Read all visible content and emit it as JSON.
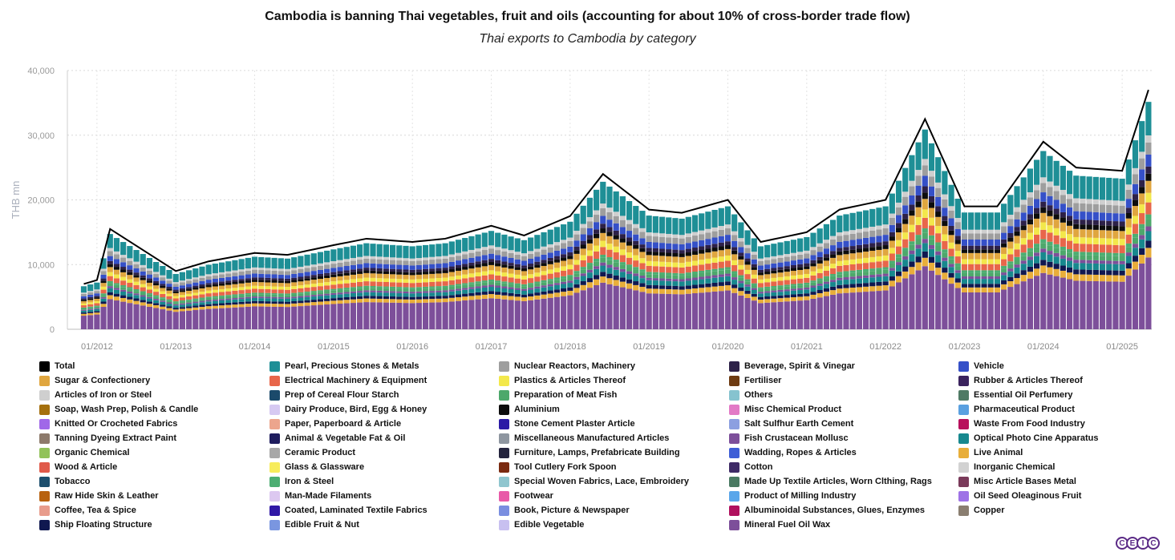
{
  "title": "Cambodia is banning Thai vegetables, fruit and oils (accounting for about 10% of cross-border trade flow)",
  "subtitle": "Thai exports to Cambodia by category",
  "logo_text": "CEIC",
  "chart_data": {
    "type": "bar",
    "stacked": true,
    "ylabel": "THB mn",
    "ylim": [
      0,
      40000
    ],
    "yticks": [
      "0",
      "10,000",
      "20,000",
      "30,000",
      "40,000"
    ],
    "xticks": [
      "01/2012",
      "01/2013",
      "01/2014",
      "01/2015",
      "01/2016",
      "01/2017",
      "01/2018",
      "01/2019",
      "01/2020",
      "01/2021",
      "01/2022",
      "01/2023",
      "01/2024",
      "01/2025"
    ],
    "x_start": "09/2011",
    "x_end": "05/2025",
    "grid": true,
    "legend_position": "bottom",
    "total_series": {
      "name": "Total",
      "color": "#000000",
      "annual_points": [
        [
          "01/2012",
          7600
        ],
        [
          "03/2012",
          15500
        ],
        [
          "01/2013",
          9000
        ],
        [
          "06/2013",
          10500
        ],
        [
          "01/2014",
          11800
        ],
        [
          "06/2014",
          11500
        ],
        [
          "01/2015",
          13000
        ],
        [
          "06/2015",
          14000
        ],
        [
          "01/2016",
          13500
        ],
        [
          "06/2016",
          14000
        ],
        [
          "01/2017",
          16000
        ],
        [
          "06/2017",
          14500
        ],
        [
          "01/2018",
          17500
        ],
        [
          "06/2018",
          24000
        ],
        [
          "01/2019",
          18500
        ],
        [
          "06/2019",
          18000
        ],
        [
          "01/2020",
          20000
        ],
        [
          "06/2020",
          13500
        ],
        [
          "01/2021",
          15000
        ],
        [
          "06/2021",
          18500
        ],
        [
          "01/2022",
          20000
        ],
        [
          "07/2022",
          32500
        ],
        [
          "01/2023",
          19000
        ],
        [
          "06/2023",
          19000
        ],
        [
          "01/2024",
          29000
        ],
        [
          "06/2024",
          25000
        ],
        [
          "01/2025",
          24500
        ],
        [
          "05/2025",
          37000
        ]
      ]
    },
    "series": [
      {
        "name": "Total",
        "color": "#000000"
      },
      {
        "name": "Pearl, Precious Stones & Metals",
        "color": "#1e8f96"
      },
      {
        "name": "Nuclear Reactors, Machinery",
        "color": "#9e9e9e"
      },
      {
        "name": "Beverage, Spirit & Vinegar",
        "color": "#2d2148"
      },
      {
        "name": "Vehicle",
        "color": "#3550c8"
      },
      {
        "name": "Sugar & Confectionery",
        "color": "#e0a63f"
      },
      {
        "name": "Electrical Machinery & Equipment",
        "color": "#e8664a"
      },
      {
        "name": "Plastics & Articles Thereof",
        "color": "#f3e84b"
      },
      {
        "name": "Fertiliser",
        "color": "#6e3b12"
      },
      {
        "name": "Rubber & Articles Thereof",
        "color": "#3b235e"
      },
      {
        "name": "Articles of Iron or Steel",
        "color": "#cfcfcf"
      },
      {
        "name": "Prep of Cereal Flour Starch",
        "color": "#1b4a6b"
      },
      {
        "name": "Preparation of Meat Fish",
        "color": "#4da86b"
      },
      {
        "name": "Others",
        "color": "#86c3cf"
      },
      {
        "name": "Essential Oil Perfumery",
        "color": "#4f7a64"
      },
      {
        "name": "Soap, Wash Prep, Polish & Candle",
        "color": "#a5700e"
      },
      {
        "name": "Dairy Produce, Bird, Egg & Honey",
        "color": "#d6c9f2"
      },
      {
        "name": "Aluminium",
        "color": "#0d0d0d"
      },
      {
        "name": "Misc Chemical Product",
        "color": "#e27ac6"
      },
      {
        "name": "Pharmaceutical Product",
        "color": "#5aa0e0"
      },
      {
        "name": "Knitted Or Crocheted Fabrics",
        "color": "#a068e8"
      },
      {
        "name": "Paper, Paperboard & Article",
        "color": "#eca58d"
      },
      {
        "name": "Stone Cement Plaster Article",
        "color": "#2c1ba6"
      },
      {
        "name": "Salt Sulfhur Earth Cement",
        "color": "#8c9fe0"
      },
      {
        "name": "Waste From Food Industry",
        "color": "#b8105c"
      },
      {
        "name": "Tanning Dyeing Extract Paint",
        "color": "#8d7a6c"
      },
      {
        "name": "Animal & Vegetable Fat & Oil",
        "color": "#1f1d5e"
      },
      {
        "name": "Miscellaneous Manufactured Articles",
        "color": "#8e96a0"
      },
      {
        "name": "Fish Crustacean Mollusc",
        "color": "#7d4f9a"
      },
      {
        "name": "Optical Photo Cine Apparatus",
        "color": "#17888e"
      },
      {
        "name": "Organic Chemical",
        "color": "#92c25a"
      },
      {
        "name": "Ceramic Product",
        "color": "#a8a8a8"
      },
      {
        "name": "Furniture, Lamps, Prefabricate Building",
        "color": "#24243e"
      },
      {
        "name": "Wadding, Ropes & Articles",
        "color": "#3e5ed6"
      },
      {
        "name": "Live Animal",
        "color": "#e8ae3a"
      },
      {
        "name": "Wood & Article",
        "color": "#e05a4a"
      },
      {
        "name": "Glass & Glassware",
        "color": "#f7ec5c"
      },
      {
        "name": "Tool Cutlery Fork Spoon",
        "color": "#7a2a10"
      },
      {
        "name": "Cotton",
        "color": "#3e2a66"
      },
      {
        "name": "Inorganic Chemical",
        "color": "#d2d2d2"
      },
      {
        "name": "Tobacco",
        "color": "#1d4f6e"
      },
      {
        "name": "Iron & Steel",
        "color": "#4cae72"
      },
      {
        "name": "Special Woven Fabrics, Lace, Embroidery",
        "color": "#8fc6cf"
      },
      {
        "name": "Made Up Textile Articles, Worn Clthing, Rags",
        "color": "#4a7a62"
      },
      {
        "name": "Misc Article Bases Metal",
        "color": "#7a3a5a"
      },
      {
        "name": "Raw Hide Skin & Leather",
        "color": "#b86210"
      },
      {
        "name": "Man-Made Filaments",
        "color": "#dcc8f0"
      },
      {
        "name": "Footwear",
        "color": "#e85aa8"
      },
      {
        "name": "Product of Milling Industry",
        "color": "#5aa6ea"
      },
      {
        "name": "Oil Seed Oleaginous Fruit",
        "color": "#9e72e6"
      },
      {
        "name": "Coffee, Tea & Spice",
        "color": "#e89c8c"
      },
      {
        "name": "Coated, Laminated Textile Fabrics",
        "color": "#3018a6"
      },
      {
        "name": "Book, Picture & Newspaper",
        "color": "#7a8ee0"
      },
      {
        "name": "Albuminoidal Substances, Glues, Enzymes",
        "color": "#b0105e"
      },
      {
        "name": "Copper",
        "color": "#8a7e70"
      },
      {
        "name": "Ship Floating Structure",
        "color": "#101850"
      },
      {
        "name": "Edible Fruit & Nut",
        "color": "#7a96e0"
      },
      {
        "name": "Edible Vegetable",
        "color": "#c8c0f0"
      },
      {
        "name": "Mineral Fuel Oil Wax",
        "color": "#7d4f9a"
      }
    ]
  }
}
